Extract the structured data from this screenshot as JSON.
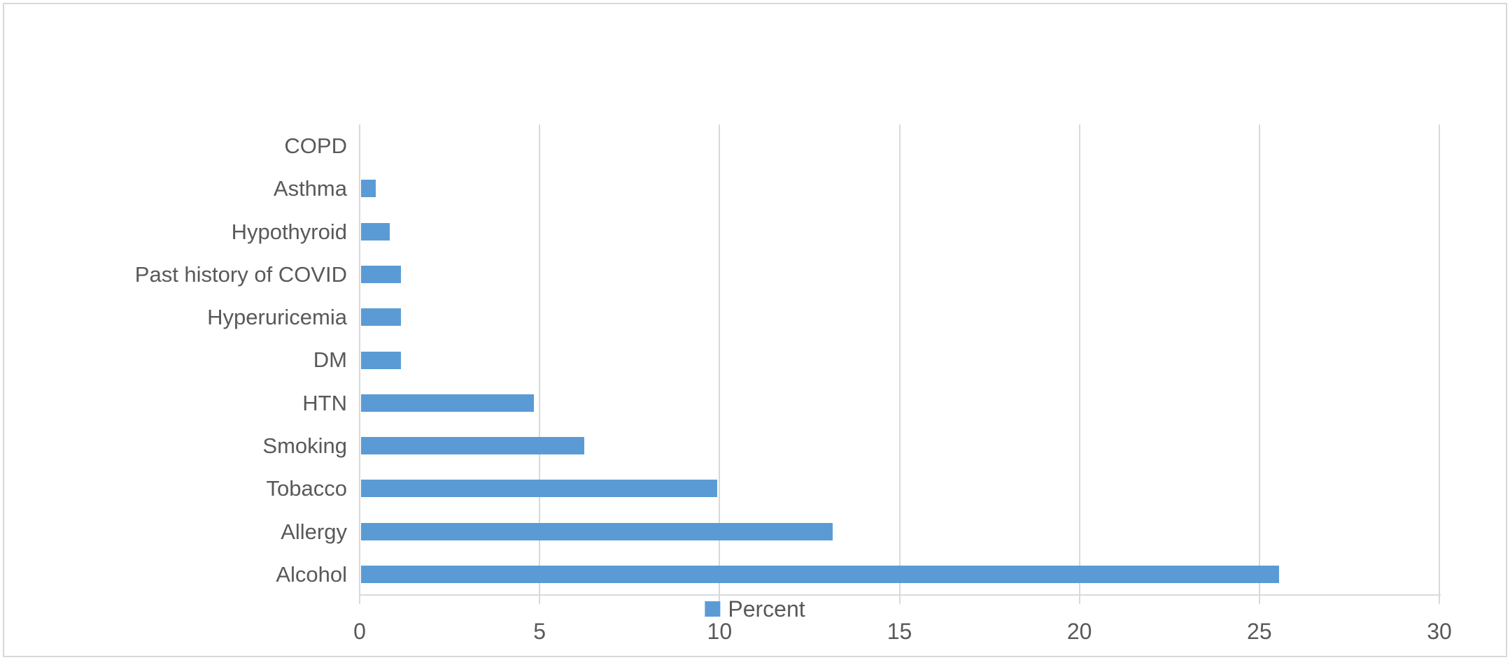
{
  "chart_data": {
    "type": "bar",
    "orientation": "horizontal",
    "title": "",
    "xlabel": "",
    "ylabel": "",
    "categories": [
      "COPD",
      "Asthma",
      "Hypothyroid",
      "Past history of COVID",
      "Hyperuricemia",
      "DM",
      "HTN",
      "Smoking",
      "Tobacco",
      "Allergy",
      "Alcohol"
    ],
    "series": [
      {
        "name": "Percent",
        "values": [
          0,
          0.4,
          0.8,
          1.1,
          1.1,
          1.1,
          4.8,
          6.2,
          9.9,
          13.1,
          25.5
        ]
      }
    ],
    "xlim": [
      0,
      30
    ],
    "x_ticks": [
      "0",
      "5",
      "10",
      "15",
      "20",
      "25",
      "30"
    ],
    "grid": true,
    "legend": {
      "label": "Percent",
      "position": "bottom-center"
    },
    "colors": {
      "bar": "#5B9BD5",
      "text": "#595959",
      "gridline": "#D9D9D9",
      "frame": "#D8D8D8",
      "background": "#FFFFFF"
    }
  }
}
